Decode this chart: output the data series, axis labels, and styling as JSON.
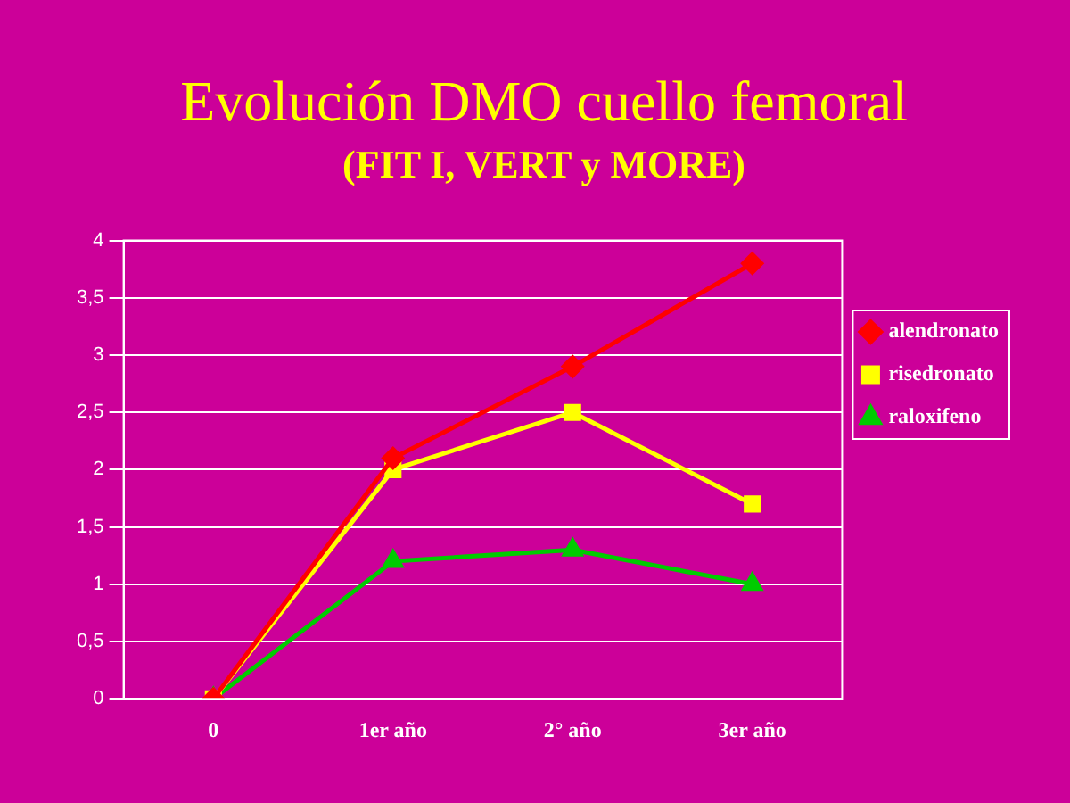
{
  "chart_data": {
    "type": "line",
    "title": "Evolución DMO cuello femoral",
    "subtitle": "(FIT I, VERT y MORE)",
    "categories": [
      "0",
      "1er año",
      "2° año",
      "3er año"
    ],
    "series": [
      {
        "name": "alendronato",
        "color": "#ff0000",
        "marker": "diamond",
        "values": [
          0,
          2.1,
          2.9,
          3.8
        ]
      },
      {
        "name": "risedronato",
        "color": "#ffff00",
        "marker": "square",
        "values": [
          0,
          2.0,
          2.5,
          1.7
        ]
      },
      {
        "name": "raloxifeno",
        "color": "#00cc00",
        "marker": "triangle",
        "values": [
          0,
          1.2,
          1.3,
          1.0
        ]
      }
    ],
    "ylim": [
      0,
      4
    ],
    "yticks": [
      0,
      {
        "value": 0.5,
        "label": "0,5"
      },
      1,
      {
        "value": 1.5,
        "label": "1,5"
      },
      2,
      {
        "value": 2.5,
        "label": "2,5"
      },
      3,
      {
        "value": 3.5,
        "label": "3,5"
      },
      4
    ],
    "grid": "y",
    "legend": "right",
    "line_style": "solid"
  }
}
